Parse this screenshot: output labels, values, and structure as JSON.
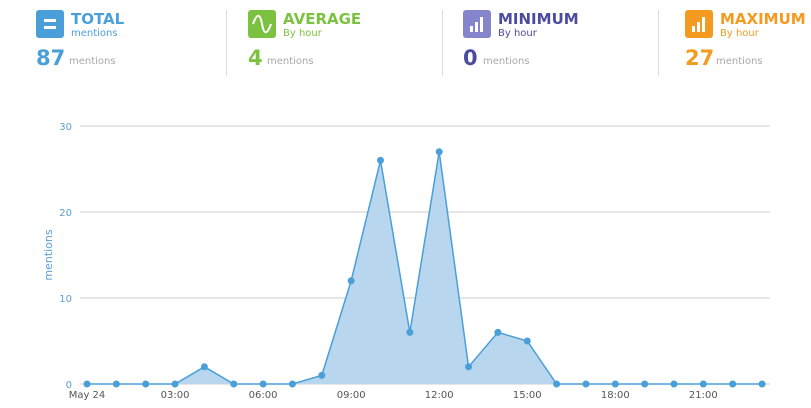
{
  "stats": [
    {
      "title": "TOTAL",
      "subtitle": "mentions",
      "value": "87",
      "unit": "mentions",
      "color": "#4a9fd8",
      "icon": "equals-icon"
    },
    {
      "title": "AVERAGE",
      "subtitle": "By hour",
      "value": "4",
      "unit": "mentions",
      "color": "#7cc241",
      "icon": "sine-wave-icon"
    },
    {
      "title": "MINIMUM",
      "subtitle": "By hour",
      "value": "0",
      "unit": "mentions",
      "color": "#4b4ba0",
      "icon": "bars-ascending-icon"
    },
    {
      "title": "MAXIMUM",
      "subtitle": "By hour",
      "value": "27",
      "unit": "mentions",
      "color": "#f39a1f",
      "icon": "bars-ascending-icon"
    }
  ],
  "chart_data": {
    "type": "area",
    "ylabel": "mentions",
    "ylim": [
      0,
      30
    ],
    "yticks": [
      0,
      10,
      20,
      30
    ],
    "x_tick_labels": [
      "May 24",
      "03:00",
      "06:00",
      "09:00",
      "12:00",
      "15:00",
      "18:00",
      "21:00"
    ],
    "x_hours": [
      0,
      1,
      2,
      3,
      4,
      5,
      6,
      7,
      8,
      9,
      10,
      11,
      12,
      13,
      14,
      15,
      16,
      17,
      18,
      19,
      20,
      21,
      22,
      23
    ],
    "values": [
      0,
      0,
      0,
      0,
      2,
      0,
      0,
      0,
      1,
      12,
      26,
      6,
      27,
      2,
      6,
      5,
      0,
      0,
      0,
      0,
      0,
      0,
      0,
      0
    ],
    "grid": true,
    "colors": {
      "line": "#4a9fd8",
      "fill": "#b8d6ee",
      "grid": "#cccccc"
    }
  }
}
